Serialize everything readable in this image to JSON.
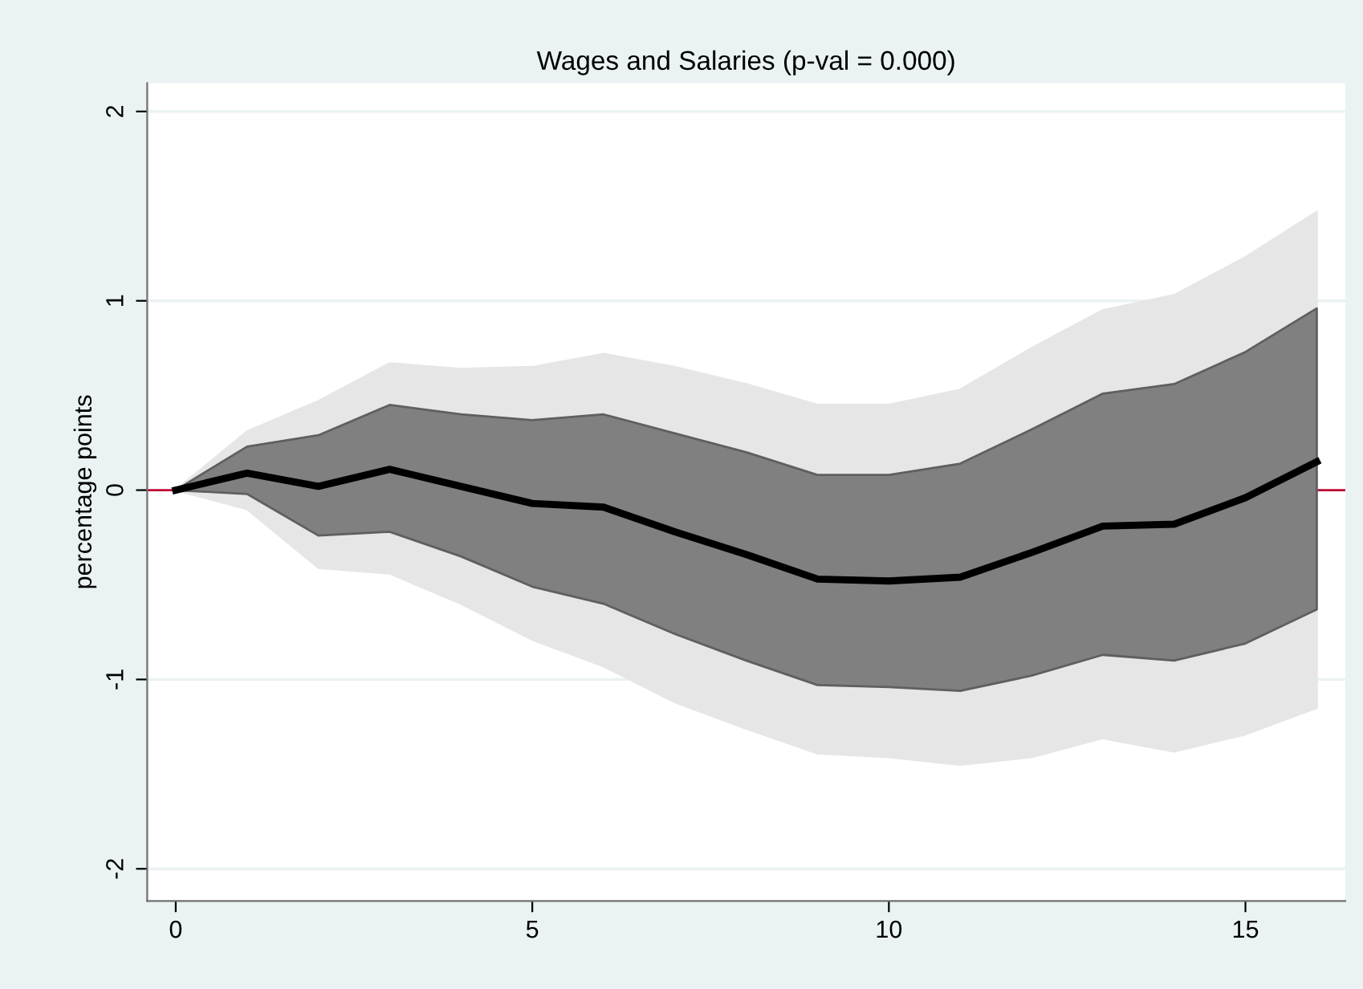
{
  "chart_data": {
    "type": "line",
    "title": "Wages and Salaries (p-val = 0.000)",
    "ylabel": "percentage points",
    "x": [
      0,
      1,
      2,
      3,
      4,
      5,
      6,
      7,
      8,
      9,
      10,
      11,
      12,
      13,
      14,
      15,
      16
    ],
    "series": [
      {
        "type": "line",
        "color": "#e6e6e6",
        "values": [
          null,
          null,
          null,
          null,
          null,
          null,
          null,
          null,
          null,
          null,
          null,
          null,
          null,
          null,
          null,
          null,
          null
        ],
        "upper": [
          0,
          0.31,
          0.47,
          0.67,
          0.64,
          0.65,
          0.72,
          0.65,
          0.56,
          0.45,
          0.45,
          0.53,
          0.75,
          0.95,
          1.03,
          1.23,
          1.47
        ],
        "lower": [
          0,
          -0.1,
          -0.41,
          -0.44,
          -0.6,
          -0.79,
          -0.93,
          -1.12,
          -1.26,
          -1.39,
          -1.41,
          -1.45,
          -1.41,
          -1.31,
          -1.38,
          -1.29,
          -1.15
        ]
      },
      {
        "type": "line",
        "color": "#808080",
        "values": [
          null,
          null,
          null,
          null,
          null,
          null,
          null,
          null,
          null,
          null,
          null,
          null,
          null,
          null,
          null,
          null,
          null
        ],
        "upper": [
          0,
          0.23,
          0.29,
          0.45,
          0.4,
          0.37,
          0.4,
          0.3,
          0.2,
          0.08,
          0.08,
          0.14,
          0.32,
          0.51,
          0.56,
          0.73,
          0.96
        ],
        "lower": [
          0,
          -0.02,
          -0.24,
          -0.22,
          -0.35,
          -0.51,
          -0.6,
          -0.76,
          -0.9,
          -1.03,
          -1.04,
          -1.06,
          -0.98,
          -0.87,
          -0.9,
          -0.81,
          -0.63
        ]
      },
      {
        "type": "line",
        "color": "#000000",
        "values": [
          0,
          0.09,
          0.02,
          0.11,
          0.02,
          -0.07,
          -0.09,
          -0.22,
          -0.34,
          -0.47,
          -0.48,
          -0.46,
          -0.33,
          -0.19,
          -0.18,
          -0.04,
          0.15
        ]
      }
    ],
    "xlim": [
      -0.4,
      16.4
    ],
    "xticks": [
      0,
      5,
      10,
      15
    ],
    "ylim": [
      -2.17,
      2.15
    ],
    "yticks": [
      -2,
      -1,
      0,
      1,
      2
    ],
    "ref_lines": [
      {
        "axis": "y",
        "value": 0,
        "color": "#c10534"
      }
    ],
    "grid": "y",
    "legend": false,
    "marker": "none",
    "line_style": "solid"
  }
}
